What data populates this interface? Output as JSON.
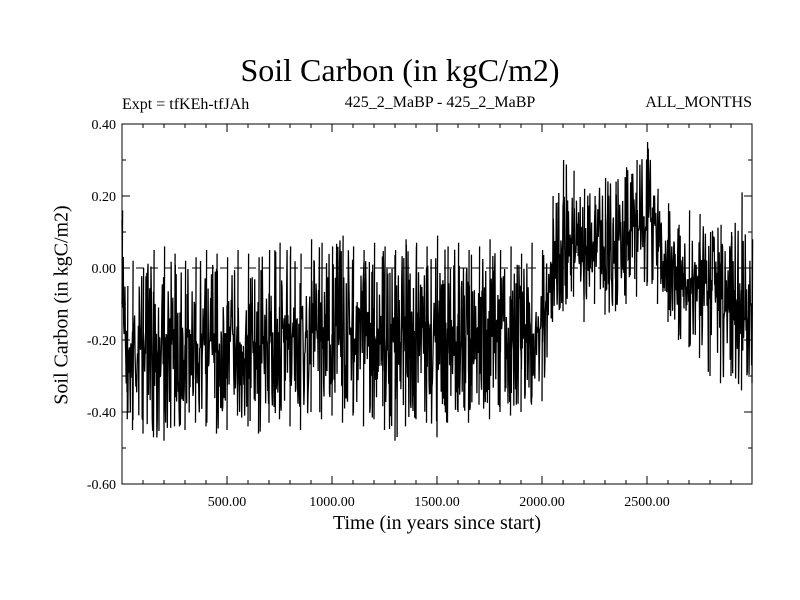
{
  "chart_data": {
    "type": "line",
    "title": "Soil Carbon (in kgC/m2)",
    "experiment_label": "Expt = tfKEh-tfJAh",
    "subtitle": "425_2_MaBP - 425_2_MaBP",
    "period_label": "ALL_MONTHS",
    "xlabel": "Time (in years since start)",
    "ylabel": "Soil Carbon (in kgC/m2)",
    "xlim": [
      0,
      3000
    ],
    "ylim": [
      -0.6,
      0.4
    ],
    "x_ticks": [
      {
        "value": 500,
        "label": "500.00"
      },
      {
        "value": 1000,
        "label": "1000.00"
      },
      {
        "value": 1500,
        "label": "1500.00"
      },
      {
        "value": 2000,
        "label": "2000.00"
      },
      {
        "value": 2500,
        "label": "2500.00"
      }
    ],
    "y_ticks": [
      {
        "value": 0.4,
        "label": "0.40"
      },
      {
        "value": 0.2,
        "label": "0.20"
      },
      {
        "value": 0.0,
        "label": "0.00"
      },
      {
        "value": -0.2,
        "label": "-0.20"
      },
      {
        "value": -0.4,
        "label": "-0.40"
      },
      {
        "value": -0.6,
        "label": "-0.60"
      }
    ],
    "reference_line": {
      "y": 0.0,
      "style": "dashed"
    },
    "grid": false,
    "series": [
      {
        "color": "#000000",
        "x": [
          0,
          25,
          50,
          100,
          150,
          200,
          250,
          300,
          350,
          400,
          450,
          500,
          550,
          600,
          650,
          700,
          750,
          800,
          850,
          900,
          950,
          1000,
          1050,
          1100,
          1150,
          1200,
          1250,
          1300,
          1350,
          1400,
          1450,
          1500,
          1550,
          1600,
          1650,
          1700,
          1750,
          1800,
          1850,
          1900,
          1950,
          2000,
          2050,
          2100,
          2150,
          2200,
          2250,
          2300,
          2350,
          2400,
          2450,
          2500,
          2550,
          2600,
          2650,
          2700,
          2750,
          2800,
          2850,
          2900,
          2950,
          3000
        ],
        "values": [
          -0.05,
          -0.28,
          -0.22,
          -0.2,
          -0.24,
          -0.19,
          -0.21,
          -0.18,
          -0.2,
          -0.22,
          -0.19,
          -0.21,
          -0.2,
          -0.23,
          -0.2,
          -0.21,
          -0.22,
          -0.19,
          -0.2,
          -0.16,
          -0.18,
          -0.17,
          -0.19,
          -0.18,
          -0.2,
          -0.17,
          -0.19,
          -0.21,
          -0.2,
          -0.18,
          -0.17,
          -0.2,
          -0.19,
          -0.18,
          -0.21,
          -0.16,
          -0.19,
          -0.18,
          -0.2,
          -0.22,
          -0.19,
          -0.17,
          0.02,
          0.05,
          0.08,
          0.03,
          0.06,
          0.04,
          0.07,
          0.1,
          0.12,
          0.15,
          0.08,
          0.02,
          0.0,
          -0.03,
          -0.02,
          -0.05,
          -0.08,
          -0.12,
          -0.15,
          -0.1
        ],
        "envelope_min": [
          -0.1,
          -0.42,
          -0.45,
          -0.46,
          -0.47,
          -0.48,
          -0.44,
          -0.45,
          -0.43,
          -0.44,
          -0.46,
          -0.45,
          -0.41,
          -0.44,
          -0.46,
          -0.43,
          -0.42,
          -0.44,
          -0.45,
          -0.4,
          -0.42,
          -0.41,
          -0.43,
          -0.41,
          -0.44,
          -0.42,
          -0.45,
          -0.48,
          -0.44,
          -0.42,
          -0.43,
          -0.47,
          -0.43,
          -0.4,
          -0.43,
          -0.38,
          -0.42,
          -0.4,
          -0.41,
          -0.4,
          -0.38,
          -0.37,
          -0.15,
          -0.12,
          -0.08,
          -0.15,
          -0.1,
          -0.13,
          -0.12,
          -0.1,
          -0.08,
          -0.05,
          -0.1,
          -0.15,
          -0.2,
          -0.22,
          -0.25,
          -0.3,
          -0.32,
          -0.3,
          -0.34,
          -0.32
        ],
        "envelope_max": [
          0.16,
          -0.05,
          0.02,
          0.0,
          0.05,
          0.06,
          0.04,
          0.02,
          0.03,
          0.05,
          0.04,
          0.03,
          0.05,
          0.04,
          0.03,
          0.05,
          0.07,
          0.06,
          0.04,
          0.08,
          0.07,
          0.06,
          0.09,
          0.06,
          0.05,
          0.07,
          0.06,
          0.05,
          0.08,
          0.07,
          0.06,
          0.09,
          0.06,
          0.07,
          0.05,
          0.06,
          0.08,
          0.05,
          0.06,
          0.04,
          0.07,
          0.05,
          0.2,
          0.3,
          0.27,
          0.22,
          0.2,
          0.25,
          0.24,
          0.28,
          0.3,
          0.35,
          0.22,
          0.18,
          0.12,
          0.16,
          0.15,
          0.1,
          0.12,
          0.1,
          0.21,
          0.08
        ]
      }
    ]
  }
}
